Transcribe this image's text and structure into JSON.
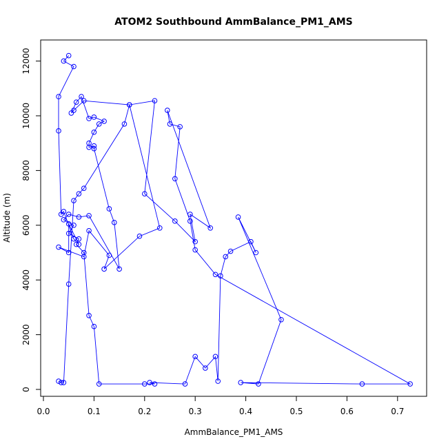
{
  "chart_data": {
    "type": "scatter",
    "title": "ATOM2 Southbound AmmBalance_PM1_AMS",
    "xlabel": "AmmBalance_PM1_AMS",
    "ylabel": "Altitude (m)",
    "xlim": [
      0.0,
      0.75
    ],
    "ylim": [
      0,
      12500
    ],
    "x_ticks": [
      "0.0",
      "0.1",
      "0.2",
      "0.3",
      "0.4",
      "0.5",
      "0.6",
      "0.7"
    ],
    "y_ticks": [
      "0",
      "2000",
      "4000",
      "6000",
      "8000",
      "10000",
      "12000"
    ],
    "grid": false,
    "legend": "none",
    "series_color": "#0000ff",
    "marker": "open-circle",
    "connect_points": true,
    "series": [
      {
        "x": [
          0.05,
          0.04,
          0.06,
          0.03,
          0.03,
          0.035,
          0.04,
          0.06,
          0.07,
          0.05,
          0.05,
          0.03,
          0.08,
          0.09,
          0.13,
          0.12,
          0.19,
          0.23,
          0.17,
          0.08,
          0.06,
          0.055,
          0.065,
          0.075,
          0.09,
          0.1,
          0.12,
          0.11,
          0.1,
          0.09,
          0.09,
          0.1,
          0.1,
          0.13,
          0.14,
          0.15,
          0.09,
          0.07,
          0.05,
          0.04,
          0.06,
          0.05,
          0.07,
          0.065,
          0.08,
          0.09,
          0.1,
          0.11,
          0.2,
          0.22,
          0.21,
          0.28,
          0.3,
          0.32,
          0.34,
          0.345,
          0.35,
          0.36,
          0.37,
          0.41,
          0.42,
          0.385,
          0.47,
          0.425,
          0.39,
          0.63,
          0.725,
          0.34,
          0.3,
          0.29,
          0.26,
          0.27,
          0.25,
          0.245,
          0.33,
          0.29,
          0.3,
          0.26,
          0.2,
          0.22,
          0.17,
          0.16,
          0.08,
          0.07,
          0.06,
          0.05,
          0.04,
          0.035,
          0.03
        ],
        "y": [
          12200,
          12000,
          11800,
          10700,
          9450,
          6400,
          6500,
          5500,
          5300,
          6050,
          5000,
          5200,
          4850,
          5800,
          4900,
          4400,
          5600,
          5900,
          10400,
          10550,
          10200,
          10100,
          10500,
          10700,
          9900,
          9950,
          9800,
          9700,
          9400,
          9000,
          8850,
          8900,
          8800,
          6600,
          6100,
          4400,
          6350,
          6300,
          6400,
          6200,
          6000,
          5700,
          5500,
          5300,
          5000,
          2700,
          2300,
          200,
          200,
          200,
          250,
          200,
          1200,
          780,
          1200,
          300,
          4150,
          4850,
          5050,
          5400,
          5000,
          6300,
          2550,
          200,
          250,
          200,
          200,
          4200,
          5100,
          6150,
          7700,
          9600,
          9700,
          10200,
          5900,
          6400,
          5400,
          6150,
          7150,
          10550,
          10400,
          9700,
          7350,
          7150,
          6900,
          3850,
          250,
          250,
          300
        ]
      }
    ]
  }
}
